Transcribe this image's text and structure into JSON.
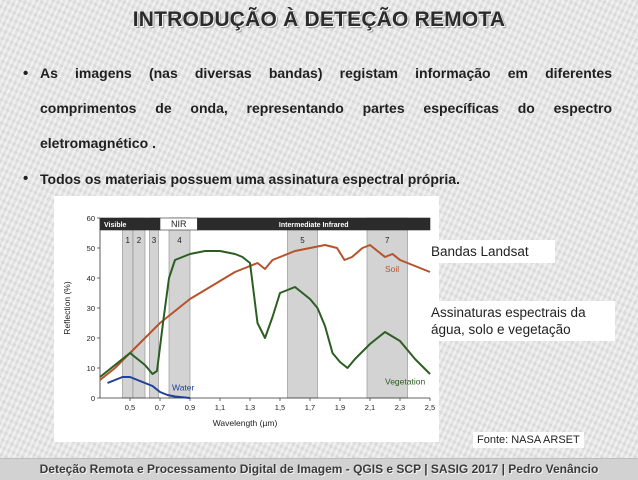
{
  "slide": {
    "title": "INTRODUÇÃO À DETEÇÃO REMOTA",
    "bullets": [
      {
        "lines": [
          "As imagens (nas diversas bandas) registam informação em diferentes",
          "comprimentos de onda, representando partes específicas do espectro",
          "eletromagnético ."
        ]
      },
      {
        "lines": [
          "Todos os materiais possuem uma assinatura espectral própria."
        ]
      }
    ],
    "callouts": {
      "bands": "Bandas Landsat",
      "signatures": "Assinaturas espectrais da água, solo e vegetação"
    },
    "source": "Fonte: NASA ARSET",
    "footer": "Deteção Remota e Processamento Digital de Imagem - QGIS e SCP   |   SASIG 2017   |   Pedro Venâncio"
  },
  "chart_data": {
    "type": "line",
    "xlabel": "Wavelength (µm)",
    "ylabel": "Reflection (%)",
    "xlim": [
      0.3,
      2.5
    ],
    "ylim": [
      0,
      60
    ],
    "x_ticks": [
      "0,5",
      "0,7",
      "0,9",
      "1,1",
      "1,3",
      "1,5",
      "1,7",
      "1,9",
      "2,1",
      "2,3",
      "2,5"
    ],
    "y_ticks": [
      0,
      10,
      20,
      30,
      40,
      50,
      60
    ],
    "regions": [
      {
        "label": "Visible",
        "from": 0.3,
        "to": 0.7
      },
      {
        "label": "NIR",
        "from": 0.7,
        "to": 0.95
      },
      {
        "label": "Intermediate Infrared",
        "from": 0.95,
        "to": 2.5
      }
    ],
    "bands": [
      {
        "label": "1",
        "from": 0.45,
        "to": 0.52
      },
      {
        "label": "2",
        "from": 0.52,
        "to": 0.6
      },
      {
        "label": "3",
        "from": 0.63,
        "to": 0.69
      },
      {
        "label": "4",
        "from": 0.76,
        "to": 0.9
      },
      {
        "label": "5",
        "from": 1.55,
        "to": 1.75
      },
      {
        "label": "7",
        "from": 2.08,
        "to": 2.35
      }
    ],
    "series": [
      {
        "name": "Soil",
        "color": "#b5532b",
        "points": [
          [
            0.3,
            6
          ],
          [
            0.4,
            10
          ],
          [
            0.5,
            15
          ],
          [
            0.6,
            20
          ],
          [
            0.7,
            25
          ],
          [
            0.8,
            29
          ],
          [
            0.9,
            33
          ],
          [
            1.0,
            36
          ],
          [
            1.1,
            39
          ],
          [
            1.2,
            42
          ],
          [
            1.3,
            44
          ],
          [
            1.35,
            45
          ],
          [
            1.4,
            43
          ],
          [
            1.45,
            46
          ],
          [
            1.5,
            47
          ],
          [
            1.6,
            49
          ],
          [
            1.7,
            50
          ],
          [
            1.8,
            51
          ],
          [
            1.88,
            50
          ],
          [
            1.93,
            46
          ],
          [
            1.98,
            47
          ],
          [
            2.05,
            50
          ],
          [
            2.1,
            51
          ],
          [
            2.15,
            49
          ],
          [
            2.2,
            47
          ],
          [
            2.25,
            48
          ],
          [
            2.3,
            46
          ],
          [
            2.4,
            44
          ],
          [
            2.5,
            42
          ]
        ]
      },
      {
        "name": "Vegetation",
        "color": "#2c5e22",
        "points": [
          [
            0.3,
            7
          ],
          [
            0.4,
            11
          ],
          [
            0.45,
            13
          ],
          [
            0.5,
            15
          ],
          [
            0.55,
            13
          ],
          [
            0.6,
            11
          ],
          [
            0.65,
            8
          ],
          [
            0.68,
            9
          ],
          [
            0.72,
            25
          ],
          [
            0.76,
            40
          ],
          [
            0.8,
            46
          ],
          [
            0.9,
            48
          ],
          [
            1.0,
            49
          ],
          [
            1.1,
            49
          ],
          [
            1.2,
            48
          ],
          [
            1.25,
            47
          ],
          [
            1.3,
            45
          ],
          [
            1.35,
            25
          ],
          [
            1.4,
            20
          ],
          [
            1.45,
            27
          ],
          [
            1.5,
            35
          ],
          [
            1.6,
            37
          ],
          [
            1.7,
            33
          ],
          [
            1.75,
            30
          ],
          [
            1.8,
            24
          ],
          [
            1.85,
            15
          ],
          [
            1.9,
            12
          ],
          [
            1.95,
            10
          ],
          [
            2.0,
            13
          ],
          [
            2.1,
            18
          ],
          [
            2.2,
            22
          ],
          [
            2.3,
            19
          ],
          [
            2.4,
            13
          ],
          [
            2.5,
            8
          ]
        ]
      },
      {
        "name": "Water",
        "color": "#1f3f9a",
        "points": [
          [
            0.35,
            5
          ],
          [
            0.4,
            6
          ],
          [
            0.45,
            7
          ],
          [
            0.5,
            7
          ],
          [
            0.55,
            6
          ],
          [
            0.6,
            5
          ],
          [
            0.65,
            4
          ],
          [
            0.7,
            2
          ],
          [
            0.75,
            1
          ],
          [
            0.8,
            0.5
          ],
          [
            0.9,
            0
          ]
        ]
      }
    ]
  }
}
